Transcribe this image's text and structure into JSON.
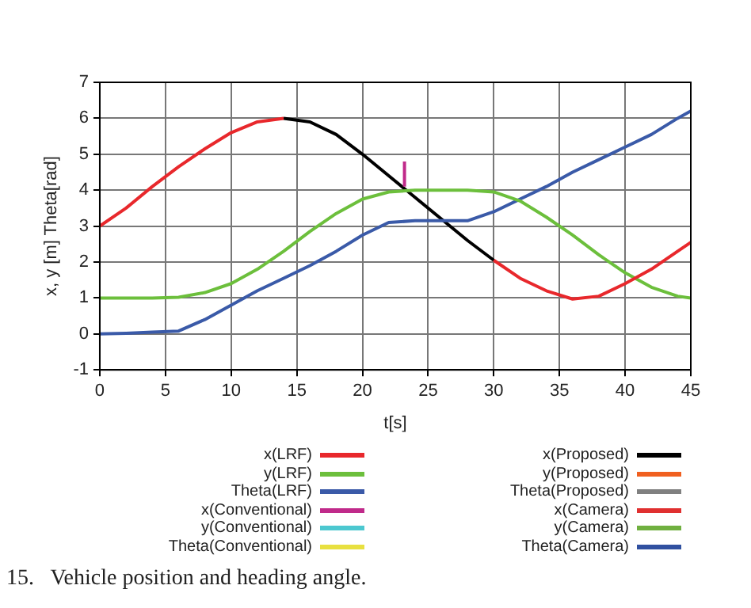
{
  "chart_data": {
    "type": "line",
    "xlabel": "t[s]",
    "ylabel": "x, y [m] Theta[rad]",
    "x": [
      0,
      2,
      4,
      6,
      8,
      10,
      12,
      14,
      16,
      18,
      20,
      22,
      24,
      26,
      28,
      30,
      32,
      34,
      36,
      38,
      40,
      42,
      44,
      45
    ],
    "xlim": [
      0,
      45
    ],
    "xticks": [
      0,
      5,
      10,
      15,
      20,
      25,
      30,
      35,
      40,
      45
    ],
    "ylim": [
      -1,
      7
    ],
    "yticks": [
      -1,
      0,
      1,
      2,
      3,
      4,
      5,
      6,
      7
    ],
    "grid": true,
    "legend": "bottom",
    "marker": "none",
    "line_style": "solid",
    "series": [
      {
        "name": "x(LRF)",
        "color": "#e8282c",
        "values": [
          3.0,
          3.5,
          4.1,
          4.65,
          5.15,
          5.6,
          5.9,
          6.0,
          null,
          null,
          null,
          null,
          null,
          null,
          null,
          2.05,
          1.55,
          1.2,
          0.97,
          1.05,
          1.4,
          1.8,
          2.3,
          2.55
        ]
      },
      {
        "name": "y(LRF)",
        "color": "#6cbf3c",
        "values": [
          1,
          1,
          1,
          1.02,
          1.15,
          1.4,
          1.8,
          2.3,
          2.85,
          3.35,
          3.75,
          3.95,
          4,
          4,
          4,
          3.95,
          3.7,
          3.25,
          2.75,
          2.2,
          1.7,
          1.3,
          1.05,
          1.0
        ]
      },
      {
        "name": "Theta(LRF)",
        "color": "#3a5aa8",
        "values": [
          0,
          0.02,
          0.05,
          0.08,
          0.4,
          0.8,
          1.2,
          1.55,
          1.9,
          2.3,
          2.75,
          3.1,
          3.15,
          3.15,
          3.15,
          3.4,
          3.75,
          4.1,
          4.5,
          4.85,
          5.2,
          5.55,
          6.0,
          6.2
        ]
      },
      {
        "name": "x(Conventional)",
        "color": "#c02a8a",
        "x": [
          23.2,
          23.2
        ],
        "values": [
          4.1,
          4.8
        ]
      },
      {
        "name": "y(Conventional)",
        "color": "#4cc8d0",
        "values": [
          null,
          null,
          null,
          null,
          null,
          null,
          null,
          null,
          null,
          null,
          null,
          null,
          null,
          null,
          null,
          null,
          null,
          null,
          null,
          null,
          null,
          null,
          null,
          null
        ]
      },
      {
        "name": "Theta(Conventional)",
        "color": "#e8e040",
        "values": [
          null,
          null,
          null,
          null,
          null,
          null,
          null,
          null,
          null,
          null,
          null,
          null,
          null,
          null,
          null,
          null,
          null,
          null,
          null,
          null,
          null,
          null,
          null,
          null
        ]
      },
      {
        "name": "x(Proposed)",
        "color": "#000000",
        "values": [
          null,
          null,
          null,
          null,
          null,
          null,
          null,
          6.0,
          5.9,
          5.55,
          5.0,
          4.4,
          3.8,
          3.2,
          2.6,
          2.05,
          null,
          null,
          null,
          null,
          null,
          null,
          null,
          null
        ]
      },
      {
        "name": "y(Proposed)",
        "color": "#f06020",
        "values": [
          null,
          null,
          null,
          null,
          null,
          null,
          null,
          null,
          null,
          null,
          null,
          null,
          null,
          null,
          null,
          null,
          null,
          null,
          null,
          null,
          null,
          null,
          null,
          null
        ]
      },
      {
        "name": "Theta(Proposed)",
        "color": "#808080",
        "values": [
          null,
          null,
          null,
          null,
          null,
          null,
          null,
          null,
          null,
          null,
          null,
          null,
          null,
          null,
          null,
          null,
          null,
          null,
          null,
          null,
          null,
          null,
          null,
          null
        ]
      },
      {
        "name": "x(Camera)",
        "color": "#e03030",
        "values": [
          null,
          null,
          null,
          null,
          null,
          null,
          null,
          null,
          null,
          null,
          null,
          null,
          null,
          null,
          null,
          null,
          null,
          null,
          null,
          null,
          null,
          null,
          null,
          null
        ]
      },
      {
        "name": "y(Camera)",
        "color": "#70b040",
        "values": [
          null,
          null,
          null,
          null,
          null,
          null,
          null,
          null,
          null,
          null,
          null,
          null,
          null,
          null,
          null,
          null,
          null,
          null,
          null,
          null,
          null,
          null,
          null,
          null
        ]
      },
      {
        "name": "Theta(Camera)",
        "color": "#3050a0",
        "values": [
          null,
          null,
          null,
          null,
          null,
          null,
          null,
          null,
          null,
          null,
          null,
          null,
          null,
          null,
          null,
          null,
          null,
          null,
          null,
          null,
          null,
          null,
          null,
          null
        ]
      }
    ],
    "annotations": [
      "15.   Vehicle position and heading angle."
    ]
  }
}
